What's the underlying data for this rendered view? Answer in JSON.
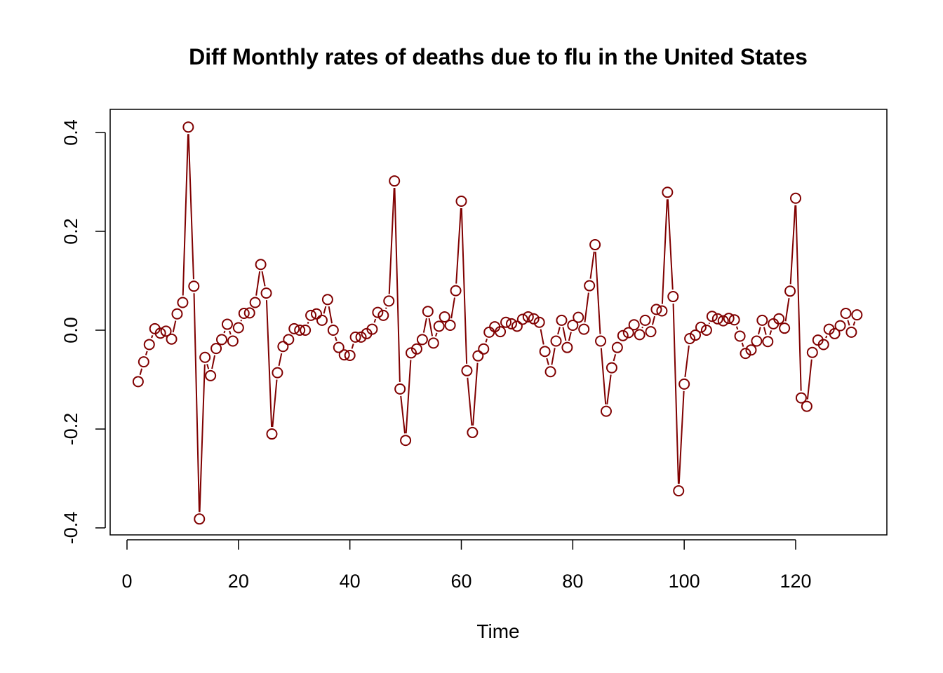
{
  "chart_data": {
    "type": "line",
    "title": "Diff Monthly rates of deaths due to flu in the United States",
    "xlabel": "Time",
    "ylabel": "",
    "xlim": [
      0,
      131
    ],
    "ylim": [
      -0.4,
      0.4
    ],
    "xticks": [
      0,
      20,
      40,
      60,
      80,
      100,
      120
    ],
    "yticks": [
      -0.4,
      -0.2,
      0.0,
      0.2,
      0.4
    ],
    "xtick_labels": [
      "0",
      "20",
      "40",
      "60",
      "80",
      "100",
      "120"
    ],
    "ytick_labels": [
      "-0.4",
      "-0.2",
      "0.0",
      "0.2",
      "0.4"
    ],
    "grid": false,
    "legend": "none",
    "line_color": "#800000",
    "x": [
      2,
      3,
      4,
      5,
      6,
      7,
      8,
      9,
      10,
      11,
      12,
      13,
      14,
      15,
      16,
      17,
      18,
      19,
      20,
      21,
      22,
      23,
      24,
      25,
      26,
      27,
      28,
      29,
      30,
      31,
      32,
      33,
      34,
      35,
      36,
      37,
      38,
      39,
      40,
      41,
      42,
      43,
      44,
      45,
      46,
      47,
      48,
      49,
      50,
      51,
      52,
      53,
      54,
      55,
      56,
      57,
      58,
      59,
      60,
      61,
      62,
      63,
      64,
      65,
      66,
      67,
      68,
      69,
      70,
      71,
      72,
      73,
      74,
      75,
      76,
      77,
      78,
      79,
      80,
      81,
      82,
      83,
      84,
      85,
      86,
      87,
      88,
      89,
      90,
      91,
      92,
      93,
      94,
      95,
      96,
      97,
      98,
      99,
      100,
      101,
      102,
      103,
      104,
      105,
      106,
      107,
      108,
      109,
      110,
      111,
      112,
      113,
      114,
      115,
      116,
      117,
      118,
      119,
      120,
      121,
      122,
      123,
      124,
      125,
      126,
      127,
      128,
      129,
      130,
      131
    ],
    "series": [
      {
        "values": [
          -0.104,
          -0.064,
          -0.029,
          0.003,
          -0.006,
          -0.002,
          -0.018,
          0.033,
          0.056,
          0.411,
          0.089,
          -0.382,
          -0.055,
          -0.092,
          -0.037,
          -0.019,
          0.012,
          -0.022,
          0.005,
          0.034,
          0.035,
          0.056,
          0.133,
          0.075,
          -0.21,
          -0.086,
          -0.033,
          -0.019,
          0.003,
          0.0,
          0.0,
          0.03,
          0.033,
          0.02,
          0.062,
          0.0,
          -0.035,
          -0.05,
          -0.051,
          -0.014,
          -0.014,
          -0.007,
          0.002,
          0.036,
          0.03,
          0.059,
          0.302,
          -0.119,
          -0.223,
          -0.046,
          -0.038,
          -0.019,
          0.038,
          -0.026,
          0.008,
          0.027,
          0.01,
          0.08,
          0.261,
          -0.082,
          -0.207,
          -0.052,
          -0.038,
          -0.004,
          0.007,
          -0.003,
          0.016,
          0.013,
          0.008,
          0.022,
          0.027,
          0.023,
          0.016,
          -0.043,
          -0.084,
          -0.022,
          0.02,
          -0.035,
          0.01,
          0.026,
          0.002,
          0.09,
          0.173,
          -0.022,
          -0.164,
          -0.076,
          -0.035,
          -0.011,
          -0.005,
          0.011,
          -0.009,
          0.02,
          -0.003,
          0.042,
          0.039,
          0.279,
          0.068,
          -0.325,
          -0.109,
          -0.017,
          -0.01,
          0.006,
          0.0,
          0.028,
          0.023,
          0.019,
          0.024,
          0.021,
          -0.012,
          -0.047,
          -0.04,
          -0.022,
          0.02,
          -0.023,
          0.013,
          0.023,
          0.004,
          0.079,
          0.267,
          -0.137,
          -0.154,
          -0.045,
          -0.02,
          -0.029,
          0.002,
          -0.007,
          0.009,
          0.034,
          -0.004,
          0.031
        ]
      }
    ]
  }
}
